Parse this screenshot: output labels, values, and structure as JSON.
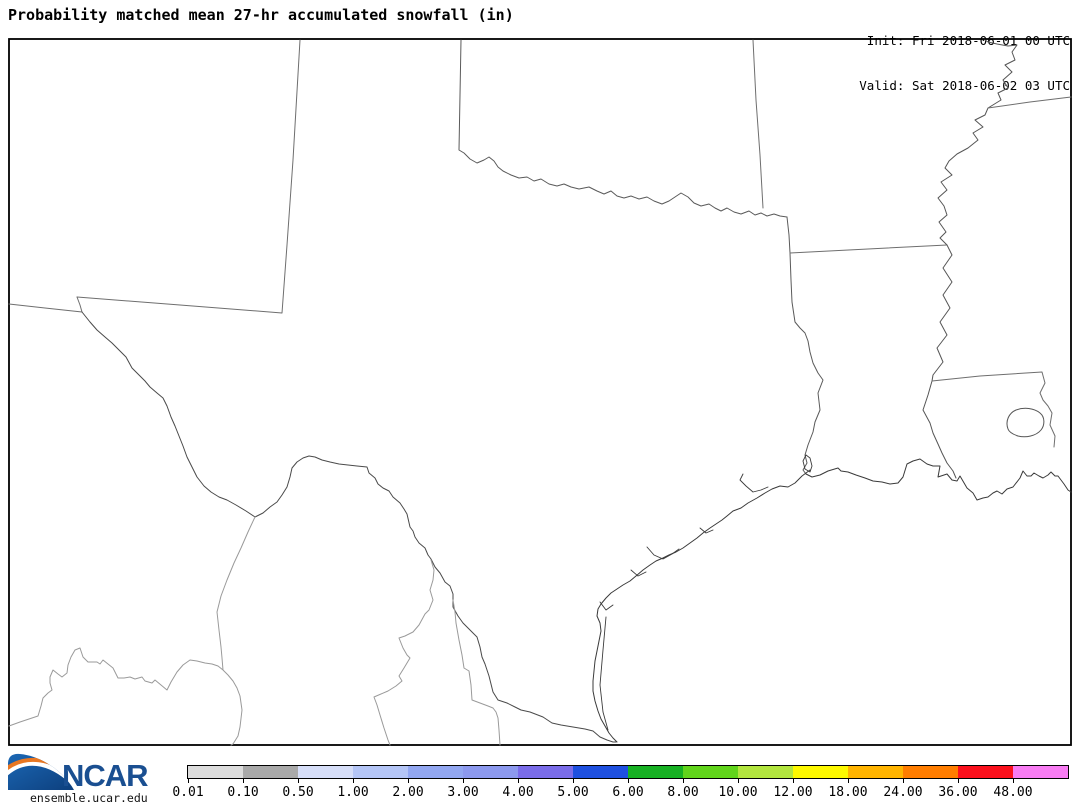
{
  "header": {
    "title": "Probability matched mean 27-hr accumulated snowfall (in)",
    "init_line": "Init: Fri 2018-06-01 00 UTC",
    "valid_line": "Valid: Sat 2018-06-02 03 UTC"
  },
  "map": {
    "background": "#ffffff",
    "frame_color": "#000000",
    "regions_shown": [
      "Texas",
      "Oklahoma",
      "New Mexico",
      "Arkansas",
      "Louisiana",
      "Mississippi",
      "Mexico",
      "Gulf of Mexico coastline",
      "Mississippi River",
      "Rio Grande"
    ]
  },
  "colorbar": {
    "tick_labels": [
      "0.01",
      "0.10",
      "0.50",
      "1.00",
      "2.00",
      "3.00",
      "4.00",
      "5.00",
      "6.00",
      "8.00",
      "10.00",
      "12.00",
      "18.00",
      "24.00",
      "36.00",
      "48.00"
    ],
    "colors": [
      "#dcdcdc",
      "#a9a9a9",
      "#d6def8",
      "#b4c5f6",
      "#92a7f1",
      "#8c99ee",
      "#7a6ce9",
      "#1e50e0",
      "#17b123",
      "#61d41b",
      "#b2e53e",
      "#fdf800",
      "#ffb400",
      "#ff7d00",
      "#fb101c",
      "#f87cf3"
    ]
  },
  "footer": {
    "logo_text": "NCAR",
    "site": "ensemble.ucar.edu",
    "logo_blue": "#10508f",
    "logo_orange": "#e87722"
  }
}
